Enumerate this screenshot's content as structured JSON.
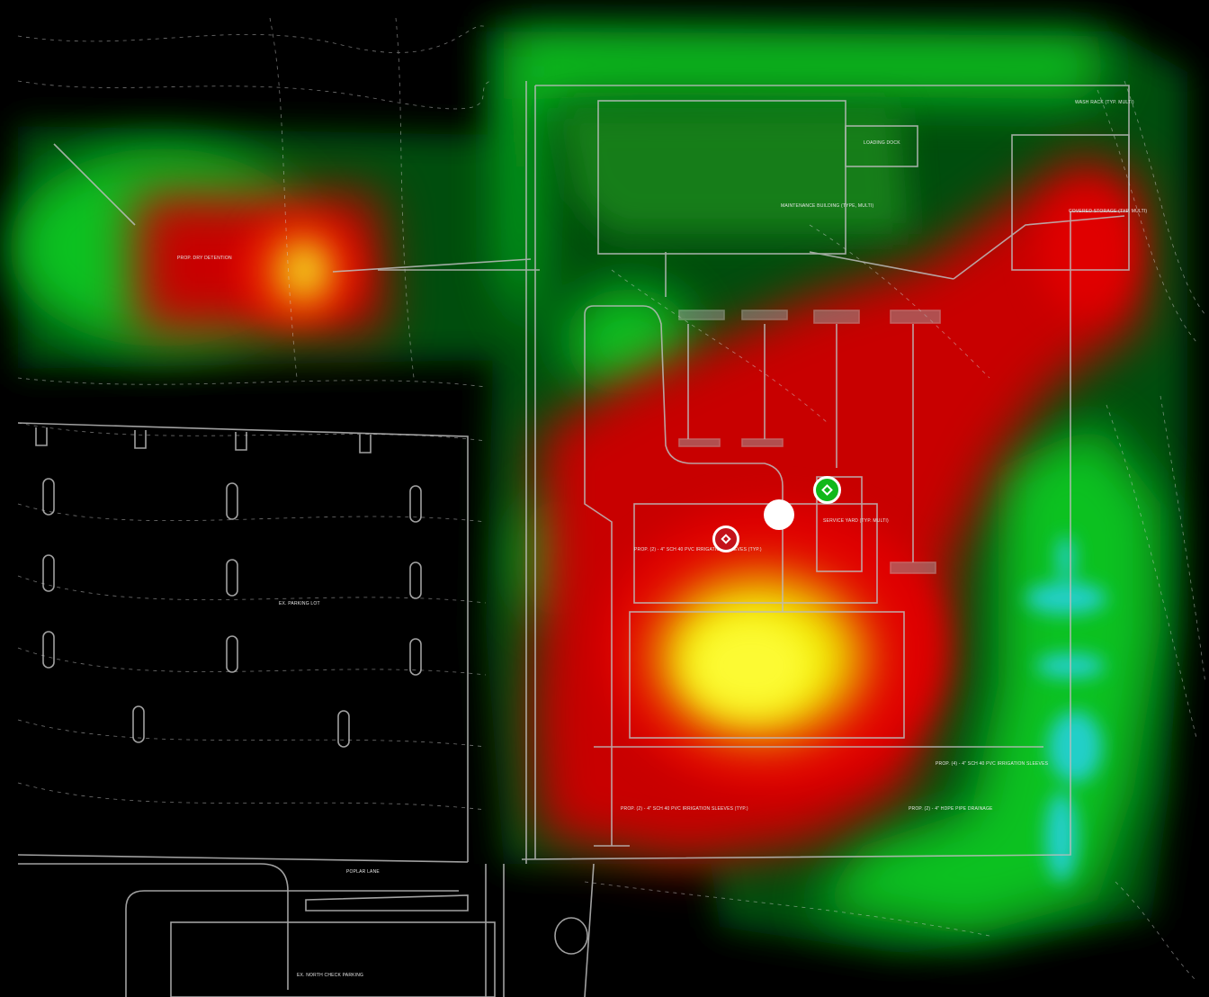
{
  "map": {
    "palette": {
      "background": "#000000",
      "weak_signal": "#00c81e",
      "medium_signal": "#c80000",
      "strong_signal": "#f0f000",
      "water_signal": "#28d2e6",
      "linework": "#cfcfcf"
    },
    "markers": [
      {
        "name": "access-point-red",
        "color": "#c4121b",
        "icon": "diamond-target-icon"
      },
      {
        "name": "access-point-green",
        "color": "#11b81a",
        "icon": "diamond-target-icon"
      },
      {
        "name": "current-location",
        "color": "#ffffff",
        "icon": "filled-dot-icon"
      }
    ],
    "labels": {
      "west_building": "PROP. DRY DETENTION",
      "maintenance": "MAINTENANCE BUILDING (TYPE, MULTI)",
      "loading": "LOADING DOCK",
      "wash_rack": "WASH RACK (TYP. MULTI)",
      "covered_storage": "COVERED STORAGE (TYP. MULTI)",
      "service_yard": "SERVICE YARD (TYP. MULTI)",
      "irrigation_sleeve": "PROP. (2) - 4\" SCH 40 PVC IRRIGATION SLEEVES (TYP.)",
      "parking_lot": "EX. PARKING LOT",
      "irrigation_sleeve_south": "PROP. (2) - 4\" SCH 40 PVC IRRIGATION SLEEVES (TYP.)",
      "pvc_east": "PROP. (4) - 4\" SCH 40 PVC IRRIGATION SLEEVES",
      "drainage": "PROP. (2) - 4\" HDPE PIPE DRAINAGE",
      "poplar_lane": "POPLAR LANE",
      "north_parking": "EX. NORTH CHECK PARKING"
    }
  }
}
